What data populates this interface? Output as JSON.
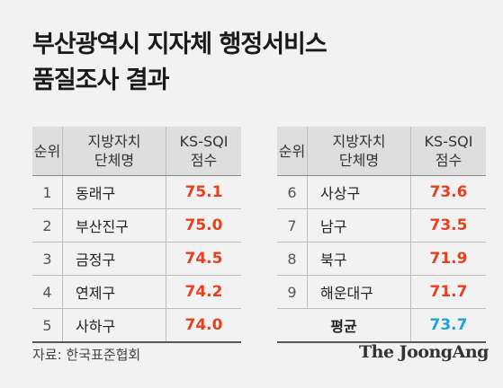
{
  "title_lines": [
    "부산광역시 지자체 행정서비스",
    "품질조사 결과"
  ],
  "headers": {
    "rank": "순위",
    "name_line1": "지방자치",
    "name_line2": "단체명",
    "score_line1": "KS-SQI",
    "score_line2": "점수"
  },
  "left_rows": [
    {
      "rank": "1",
      "name": "동래구",
      "score": "75.1"
    },
    {
      "rank": "2",
      "name": "부산진구",
      "score": "75.0"
    },
    {
      "rank": "3",
      "name": "금정구",
      "score": "74.5"
    },
    {
      "rank": "4",
      "name": "연제구",
      "score": "74.2"
    },
    {
      "rank": "5",
      "name": "사하구",
      "score": "74.0"
    }
  ],
  "right_rows": [
    {
      "rank": "6",
      "name": "사상구",
      "score": "73.6"
    },
    {
      "rank": "7",
      "name": "남구",
      "score": "73.5"
    },
    {
      "rank": "8",
      "name": "북구",
      "score": "71.9"
    },
    {
      "rank": "9",
      "name": "해운대구",
      "score": "71.7"
    }
  ],
  "average": {
    "label": "평균",
    "score": "73.7"
  },
  "source": "자료: 한국표준협회",
  "logo": "The JoongAng",
  "colors": {
    "score": "#e8401c",
    "average": "#1aa3d6",
    "header_bg": "#dedede",
    "background": "#f2f2f2"
  }
}
